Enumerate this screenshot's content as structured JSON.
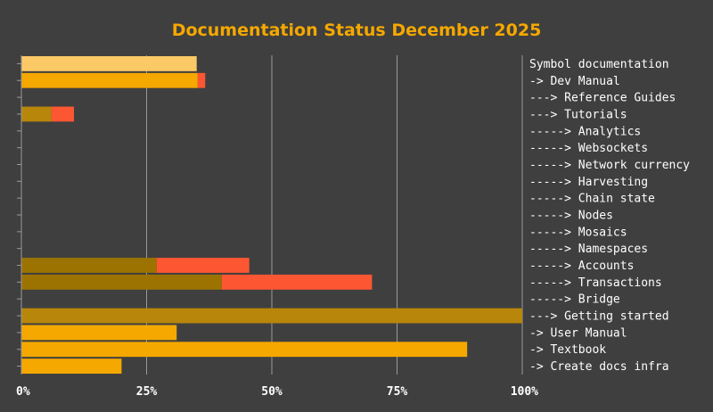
{
  "chart_data": {
    "type": "bar",
    "orientation": "horizontal",
    "stacked": true,
    "title": "Documentation Status December 2025",
    "xlim": [
      0,
      100
    ],
    "x_ticks": [
      "0%",
      "25%",
      "50%",
      "75%",
      "100%"
    ],
    "grid": true,
    "categories": [
      "Symbol documentation",
      "-> Dev Manual",
      "---> Reference Guides",
      "---> Tutorials",
      "-----> Analytics",
      "-----> Websockets",
      "-----> Network currency",
      "-----> Harvesting",
      "-----> Chain state",
      "-----> Nodes",
      "-----> Mosaics",
      "-----> Namespaces",
      "-----> Accounts",
      "-----> Transactions",
      "-----> Bridge",
      "---> Getting started",
      "-> User Manual",
      "-> Textbook",
      "-> Create docs infra"
    ],
    "levels": [
      0,
      1,
      2,
      2,
      3,
      3,
      3,
      3,
      3,
      3,
      3,
      3,
      3,
      3,
      3,
      2,
      1,
      1,
      1
    ],
    "series": [
      {
        "values": [
          35,
          35.2,
          0,
          6,
          0,
          0,
          0,
          0,
          0,
          0,
          0,
          0,
          27,
          40,
          0,
          100,
          31,
          89,
          20
        ]
      },
      {
        "values": [
          0,
          1.5,
          0,
          4.5,
          0,
          0,
          0,
          0,
          0,
          0,
          0,
          0,
          18.5,
          30,
          0,
          0,
          0,
          0,
          0
        ]
      }
    ],
    "level_colors": [
      "#fbc966",
      "#f5a800",
      "#b8860b",
      "#9c7300"
    ],
    "second_series_color": "#fc5633"
  },
  "colors": {
    "background": "#3f3f3f",
    "title": "#f5a800",
    "text": "#ffffff",
    "grid": "#9a9a9a"
  }
}
